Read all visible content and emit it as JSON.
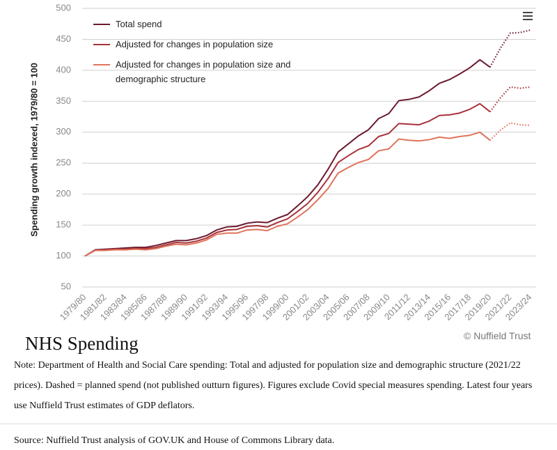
{
  "chart_data": {
    "type": "line",
    "title": "NHS Spending",
    "y_label": "Spending growth indexed, 1979/80 = 100",
    "credit": "© Nuffield Trust",
    "note": "Note:  Department of Health and Social Care spending: Total and adjusted for population size and demographic structure (2021/22 prices). Dashed = planned spend (not published outturn figures). Figures exclude Covid special measures spending.  Latest four years use Nuffield Trust estimates of GDP deflators.",
    "source": "Source:  Nuffield Trust analysis of GOV.UK and House of Commons Library data.",
    "categories": [
      "1979/80",
      null,
      "1981/82",
      null,
      "1983/84",
      null,
      "1985/86",
      null,
      "1987/88",
      null,
      "1989/90",
      null,
      "1991/92",
      null,
      "1993/94",
      null,
      "1995/96",
      null,
      "1997/98",
      null,
      "1999/00",
      null,
      "2001/02",
      null,
      "2003/04",
      null,
      "2005/06",
      null,
      "2007/08",
      null,
      "2009/10",
      null,
      "2011/12",
      null,
      "2013/14",
      null,
      "2015/16",
      null,
      "2017/18",
      null,
      "2019/20",
      null,
      "2021/22",
      null,
      "2023/24"
    ],
    "dashed_from_index": 40,
    "ylim": [
      50,
      500
    ],
    "yticks": [
      50,
      100,
      150,
      200,
      250,
      300,
      350,
      400,
      450,
      500
    ],
    "grid": true,
    "series": [
      {
        "name": "Total spend",
        "color": "#6b1a2e",
        "values": [
          100,
          110,
          111,
          112,
          113,
          114,
          114,
          117,
          121,
          125,
          125,
          128,
          133,
          142,
          147,
          148,
          153,
          155,
          154,
          161,
          167,
          181,
          196,
          215,
          240,
          268,
          281,
          294,
          304,
          322,
          330,
          351,
          353,
          357,
          367,
          379,
          385,
          394,
          404,
          417,
          405,
          435,
          460,
          461,
          465
        ]
      },
      {
        "name": "Adjusted for changes in population size",
        "color": "#a8323a",
        "values": [
          100,
          109,
          110,
          111,
          111,
          112,
          112,
          114,
          118,
          122,
          121,
          124,
          129,
          138,
          142,
          143,
          148,
          149,
          147,
          154,
          160,
          172,
          185,
          203,
          225,
          251,
          262,
          272,
          278,
          293,
          298,
          314,
          313,
          312,
          318,
          327,
          328,
          331,
          337,
          346,
          333,
          355,
          373,
          371,
          373
        ]
      },
      {
        "name": "Adjusted for changes in population size and demographic structure",
        "color": "#e0735a",
        "values": [
          100,
          109,
          109,
          110,
          110,
          111,
          110,
          112,
          116,
          119,
          118,
          121,
          126,
          135,
          137,
          137,
          142,
          143,
          141,
          148,
          152,
          163,
          175,
          191,
          209,
          234,
          243,
          251,
          256,
          270,
          273,
          289,
          287,
          286,
          288,
          292,
          290,
          293,
          295,
          300,
          287,
          303,
          315,
          312,
          311
        ]
      }
    ]
  }
}
